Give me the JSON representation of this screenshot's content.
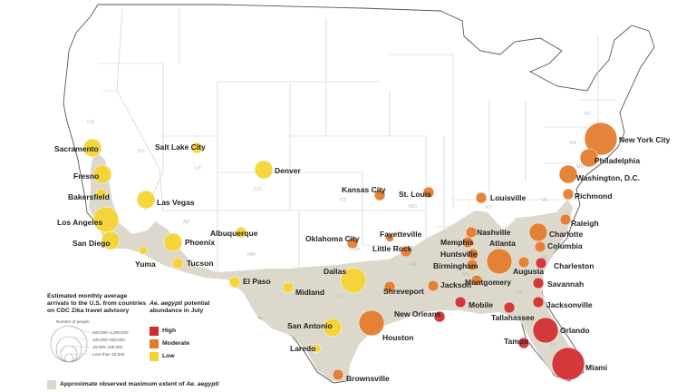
{
  "map": {
    "colors": {
      "high": "#d32a2f",
      "moderate": "#e47a2a",
      "low": "#f6d22e",
      "extent": "#ddd8cc",
      "state_line": "#c9c9c9",
      "coast": "#555555",
      "background": "#ffffff"
    },
    "state_abbrs": [
      "CA",
      "NV",
      "UT",
      "AZ",
      "CO",
      "NM",
      "TX",
      "OK",
      "KS",
      "MO",
      "AR",
      "LA",
      "MS",
      "AL",
      "GA",
      "FL",
      "SC",
      "NC",
      "TN",
      "KY",
      "VA",
      "PA",
      "NY",
      "MD",
      "DE",
      "NJ"
    ],
    "cities": [
      {
        "name": "Sacramento",
        "level": "low",
        "size": 3
      },
      {
        "name": "Fresno",
        "level": "low",
        "size": 3
      },
      {
        "name": "Bakersfield",
        "level": "low",
        "size": 2
      },
      {
        "name": "Los Angeles",
        "level": "low",
        "size": 4
      },
      {
        "name": "San Diego",
        "level": "low",
        "size": 3
      },
      {
        "name": "Salt Lake City",
        "level": "low",
        "size": 2
      },
      {
        "name": "Las Vegas",
        "level": "low",
        "size": 3
      },
      {
        "name": "Denver",
        "level": "low",
        "size": 3
      },
      {
        "name": "Albuquerque",
        "level": "low",
        "size": 2
      },
      {
        "name": "Phoenix",
        "level": "low",
        "size": 3
      },
      {
        "name": "Tucson",
        "level": "low",
        "size": 2
      },
      {
        "name": "Yuma",
        "level": "low",
        "size": 1
      },
      {
        "name": "El Paso",
        "level": "low",
        "size": 2
      },
      {
        "name": "Midland",
        "level": "low",
        "size": 2
      },
      {
        "name": "Dallas",
        "level": "low",
        "size": 4
      },
      {
        "name": "San Antonio",
        "level": "low",
        "size": 3
      },
      {
        "name": "Laredo",
        "level": "low",
        "size": 1
      },
      {
        "name": "Kansas City",
        "level": "moderate",
        "size": 2
      },
      {
        "name": "St. Louis",
        "level": "moderate",
        "size": 2
      },
      {
        "name": "Oklahoma City",
        "level": "moderate",
        "size": 2
      },
      {
        "name": "Fayetteville",
        "level": "moderate",
        "size": 1
      },
      {
        "name": "Little Rock",
        "level": "moderate",
        "size": 2
      },
      {
        "name": "Louisville",
        "level": "moderate",
        "size": 2
      },
      {
        "name": "Nashville",
        "level": "moderate",
        "size": 2
      },
      {
        "name": "Memphis",
        "level": "moderate",
        "size": 2
      },
      {
        "name": "Huntsville",
        "level": "moderate",
        "size": 2
      },
      {
        "name": "Birmingham",
        "level": "moderate",
        "size": 2
      },
      {
        "name": "Atlanta",
        "level": "moderate",
        "size": 4
      },
      {
        "name": "Augusta",
        "level": "moderate",
        "size": 2
      },
      {
        "name": "Montgomery",
        "level": "moderate",
        "size": 2
      },
      {
        "name": "Shreveport",
        "level": "moderate",
        "size": 2
      },
      {
        "name": "Jackson",
        "level": "moderate",
        "size": 2
      },
      {
        "name": "Houston",
        "level": "moderate",
        "size": 4
      },
      {
        "name": "Brownsville",
        "level": "moderate",
        "size": 2
      },
      {
        "name": "New York City",
        "level": "moderate",
        "size": 5
      },
      {
        "name": "Philadelphia",
        "level": "moderate",
        "size": 3
      },
      {
        "name": "Washington, D.C.",
        "level": "moderate",
        "size": 3
      },
      {
        "name": "Richmond",
        "level": "moderate",
        "size": 2
      },
      {
        "name": "Raleigh",
        "level": "moderate",
        "size": 2
      },
      {
        "name": "Charlotte",
        "level": "moderate",
        "size": 3
      },
      {
        "name": "Columbia",
        "level": "moderate",
        "size": 2
      },
      {
        "name": "Charleston",
        "level": "high",
        "size": 2
      },
      {
        "name": "Savannah",
        "level": "high",
        "size": 2
      },
      {
        "name": "New Orleans",
        "level": "high",
        "size": 2
      },
      {
        "name": "Mobile",
        "level": "high",
        "size": 2
      },
      {
        "name": "Tallahassee",
        "level": "high",
        "size": 2
      },
      {
        "name": "Jacksonville",
        "level": "high",
        "size": 2
      },
      {
        "name": "Orlando",
        "level": "high",
        "size": 4
      },
      {
        "name": "Tampa",
        "level": "high",
        "size": 2
      },
      {
        "name": "Miami",
        "level": "high",
        "size": 5
      }
    ]
  },
  "legend": {
    "arrivals_title": "Estimated monthly average arrivals to the U.S. from countries on CDC Zika travel advisory",
    "circles_header": "Number of people",
    "size_classes": [
      "500,000–1,000,000",
      "100,000–500,000",
      "10,000–100,000",
      "Less than 10,000"
    ],
    "abundance_title_species": "Ae. aegypti",
    "abundance_title_rest": "potential abundance in July",
    "levels": [
      {
        "key": "high",
        "label": "High"
      },
      {
        "key": "moderate",
        "label": "Moderate"
      },
      {
        "key": "low",
        "label": "Low"
      }
    ],
    "extent_label_prefix": "Approximate observed maximum extent of ",
    "extent_label_species": "Ae. aegypti"
  }
}
